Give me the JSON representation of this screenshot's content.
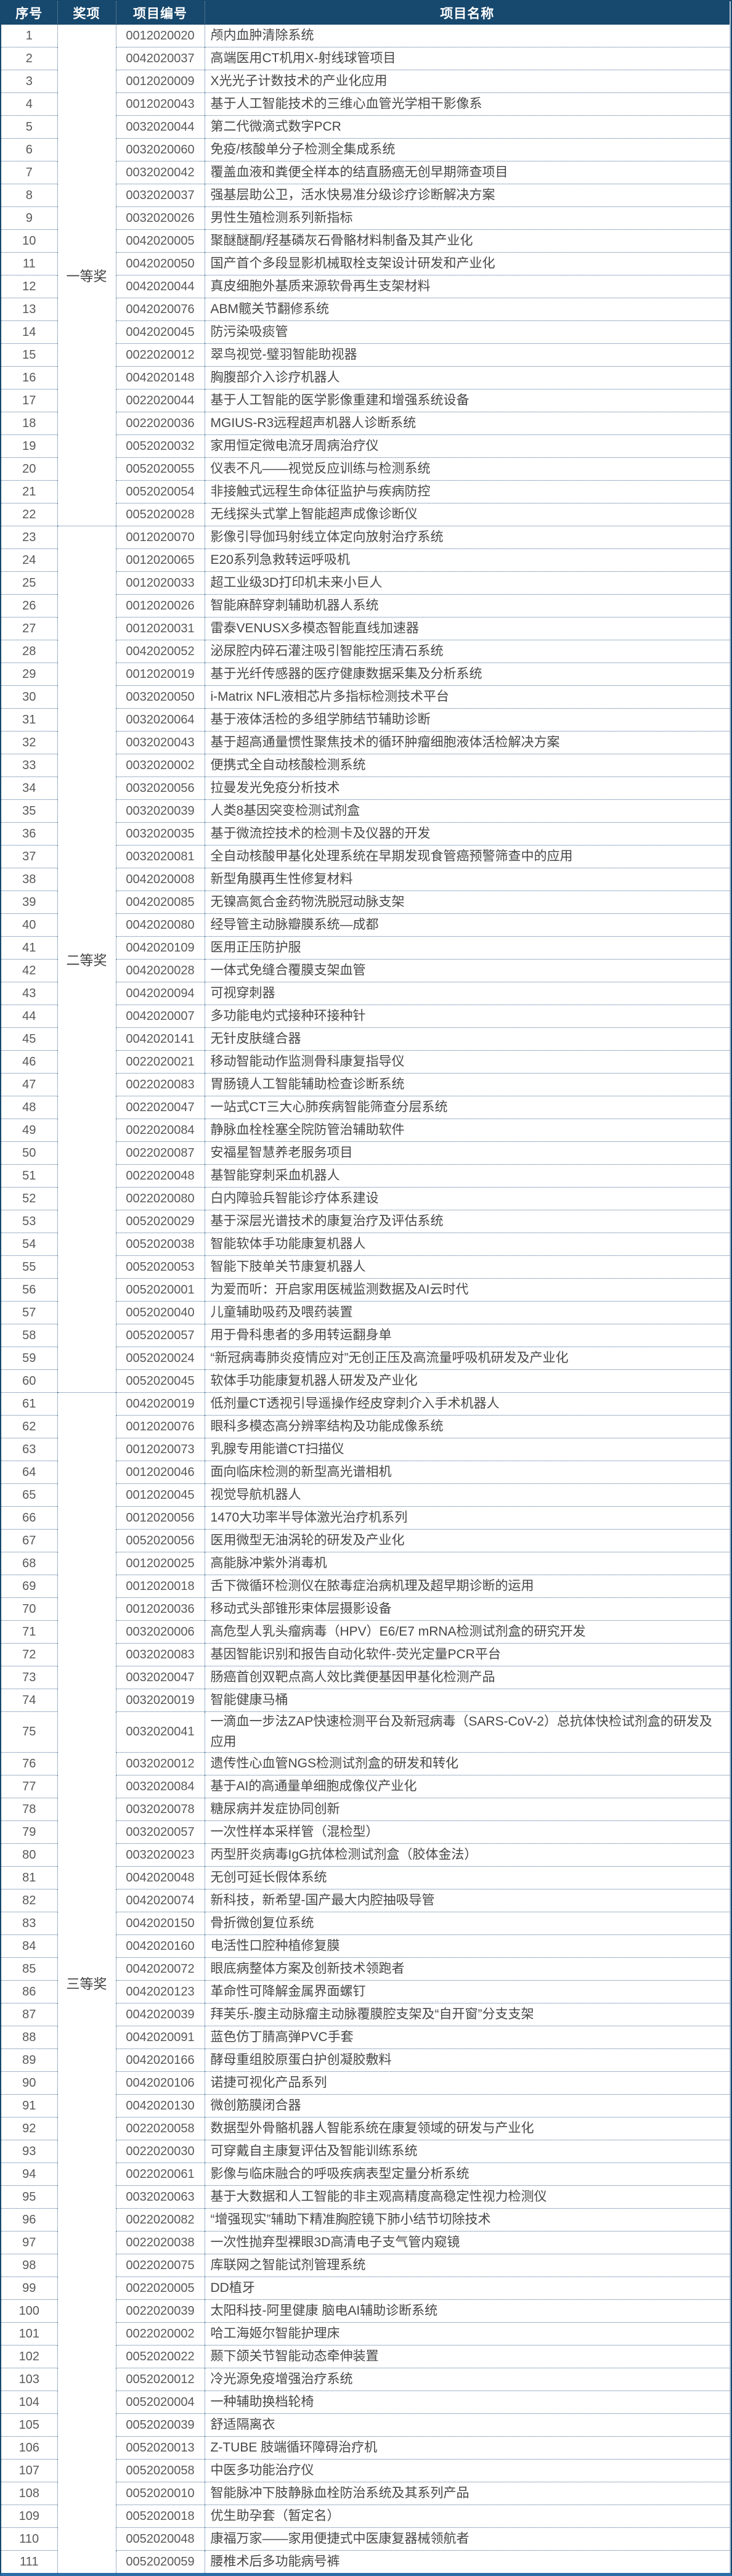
{
  "colors": {
    "header_bg": "#17486d",
    "header_text": "#ffffff",
    "outer_border": "#17486d",
    "bottom_accent": "#2b6da8",
    "grid_dotted": "#466f96",
    "body_text": "#474747"
  },
  "table": {
    "columns": [
      "序号",
      "奖项",
      "项目编号",
      "项目名称"
    ],
    "groups": [
      {
        "award": "一等奖",
        "rows": [
          {
            "no": "1",
            "code": "0012020020",
            "name": "颅内血肿清除系统"
          },
          {
            "no": "2",
            "code": "0042020037",
            "name": "高端医用CT机用X-射线球管项目"
          },
          {
            "no": "3",
            "code": "0012020009",
            "name": "X光光子计数技术的产业化应用"
          },
          {
            "no": "4",
            "code": "0012020043",
            "name": "基于人工智能技术的三维心血管光学相干影像系"
          },
          {
            "no": "5",
            "code": "0032020044",
            "name": "第二代微滴式数字PCR"
          },
          {
            "no": "6",
            "code": "0032020060",
            "name": "免疫/核酸单分子检测全集成系统"
          },
          {
            "no": "7",
            "code": "0032020042",
            "name": "覆盖血液和粪便全样本的结直肠癌无创早期筛查项目"
          },
          {
            "no": "8",
            "code": "0032020037",
            "name": "强基层助公卫，活水快易准分级诊疗诊断解决方案"
          },
          {
            "no": "9",
            "code": "0032020026",
            "name": "男性生殖检测系列新指标"
          },
          {
            "no": "10",
            "code": "0042020005",
            "name": "聚醚醚酮/羟基磷灰石骨骼材料制备及其产业化"
          },
          {
            "no": "11",
            "code": "0042020050",
            "name": "国产首个多段显影机械取栓支架设计研发和产业化"
          },
          {
            "no": "12",
            "code": "0042020044",
            "name": "真皮细胞外基质来源软骨再生支架材料"
          },
          {
            "no": "13",
            "code": "0042020076",
            "name": "ABM髋关节翻修系统"
          },
          {
            "no": "14",
            "code": "0042020045",
            "name": "防污染吸痰管"
          },
          {
            "no": "15",
            "code": "0022020012",
            "name": "翠鸟视觉-璧羽智能助视器"
          },
          {
            "no": "16",
            "code": "0042020148",
            "name": "胸腹部介入诊疗机器人"
          },
          {
            "no": "17",
            "code": "0022020044",
            "name": "基于人工智能的医学影像重建和增强系统设备"
          },
          {
            "no": "18",
            "code": "0022020036",
            "name": "MGIUS-R3远程超声机器人诊断系统"
          },
          {
            "no": "19",
            "code": "0052020032",
            "name": "家用恒定微电流牙周病治疗仪"
          },
          {
            "no": "20",
            "code": "0052020055",
            "name": "仪表不凡——视觉反应训练与检测系统"
          },
          {
            "no": "21",
            "code": "0052020054",
            "name": "非接触式远程生命体征监护与疾病防控"
          },
          {
            "no": "22",
            "code": "0052020028",
            "name": "无线探头式掌上智能超声成像诊断仪"
          }
        ]
      },
      {
        "award": "二等奖",
        "rows": [
          {
            "no": "23",
            "code": "0012020070",
            "name": "影像引导伽玛射线立体定向放射治疗系统"
          },
          {
            "no": "24",
            "code": "0012020065",
            "name": "E20系列急救转运呼吸机"
          },
          {
            "no": "25",
            "code": "0012020033",
            "name": "超工业级3D打印机未来小巨人"
          },
          {
            "no": "26",
            "code": "0012020026",
            "name": "智能麻醉穿刺辅助机器人系统"
          },
          {
            "no": "27",
            "code": "0012020031",
            "name": "雷泰VENUSX多模态智能直线加速器"
          },
          {
            "no": "28",
            "code": "0042020052",
            "name": "泌尿腔内碎石灌注吸引智能控压清石系统"
          },
          {
            "no": "29",
            "code": "0012020019",
            "name": "基于光纤传感器的医疗健康数据采集及分析系统"
          },
          {
            "no": "30",
            "code": "0032020050",
            "name": "i-Matrix NFL液相芯片多指标检测技术平台"
          },
          {
            "no": "31",
            "code": "0032020064",
            "name": "基于液体活检的多组学肺结节辅助诊断"
          },
          {
            "no": "32",
            "code": "0032020043",
            "name": "基于超高通量惯性聚焦技术的循环肿瘤细胞液体活检解决方案"
          },
          {
            "no": "33",
            "code": "0032020002",
            "name": "便携式全自动核酸检测系统"
          },
          {
            "no": "34",
            "code": "0032020056",
            "name": "拉曼发光免疫分析技术"
          },
          {
            "no": "35",
            "code": "0032020039",
            "name": "人类8基因突变检测试剂盒"
          },
          {
            "no": "36",
            "code": "0032020035",
            "name": "基于微流控技术的检测卡及仪器的开发"
          },
          {
            "no": "37",
            "code": "0032020081",
            "name": "全自动核酸甲基化处理系统在早期发现食管癌预警筛查中的应用"
          },
          {
            "no": "38",
            "code": "0042020008",
            "name": "新型角膜再生性修复材料"
          },
          {
            "no": "39",
            "code": "0042020085",
            "name": "无镍高氮合金药物洗脱冠动脉支架"
          },
          {
            "no": "40",
            "code": "0042020080",
            "name": "经导管主动脉瓣膜系统—成都"
          },
          {
            "no": "41",
            "code": "0042020109",
            "name": "医用正压防护服"
          },
          {
            "no": "42",
            "code": "0042020028",
            "name": "一体式免缝合覆膜支架血管"
          },
          {
            "no": "43",
            "code": "0042020094",
            "name": "可视穿刺器"
          },
          {
            "no": "44",
            "code": "0042020007",
            "name": "多功能电灼式接种环接种针"
          },
          {
            "no": "45",
            "code": "0042020141",
            "name": "无针皮肤缝合器"
          },
          {
            "no": "46",
            "code": "0022020021",
            "name": "移动智能动作监测骨科康复指导仪"
          },
          {
            "no": "47",
            "code": "0022020083",
            "name": "胃肠镜人工智能辅助检查诊断系统"
          },
          {
            "no": "48",
            "code": "0022020047",
            "name": "一站式CT三大心肺疾病智能筛查分层系统"
          },
          {
            "no": "49",
            "code": "0022020084",
            "name": "静脉血栓栓塞全院防管治辅助软件"
          },
          {
            "no": "50",
            "code": "0022020087",
            "name": "安福星智慧养老服务项目"
          },
          {
            "no": "51",
            "code": "0022020048",
            "name": "基智能穿刺采血机器人"
          },
          {
            "no": "52",
            "code": "0022020080",
            "name": "白内障验兵智能诊疗体系建设"
          },
          {
            "no": "53",
            "code": "0052020029",
            "name": "基于深层光谱技术的康复治疗及评估系统"
          },
          {
            "no": "54",
            "code": "0052020038",
            "name": "智能软体手功能康复机器人"
          },
          {
            "no": "55",
            "code": "0052020053",
            "name": "智能下肢单关节康复机器人"
          },
          {
            "no": "56",
            "code": "0052020001",
            "name": "为爱而听：开启家用医械监测数据及AI云时代"
          },
          {
            "no": "57",
            "code": "0052020040",
            "name": "儿童辅助吸药及喂药装置"
          },
          {
            "no": "58",
            "code": "0052020057",
            "name": "用于骨科患者的多用转运翻身单"
          },
          {
            "no": "59",
            "code": "0052020024",
            "name": "“新冠病毒肺炎疫情应对”无创正压及高流量呼吸机研发及产业化"
          },
          {
            "no": "60",
            "code": "0052020045",
            "name": "软体手功能康复机器人研发及产业化"
          }
        ]
      },
      {
        "award": "三等奖",
        "rows": [
          {
            "no": "61",
            "code": "0042020019",
            "name": "低剂量CT透视引导遥操作经皮穿刺介入手术机器人"
          },
          {
            "no": "62",
            "code": "0012020076",
            "name": "眼科多模态高分辨率结构及功能成像系统"
          },
          {
            "no": "63",
            "code": "0012020073",
            "name": "乳腺专用能谱CT扫描仪"
          },
          {
            "no": "64",
            "code": "0012020046",
            "name": "面向临床检测的新型高光谱相机"
          },
          {
            "no": "65",
            "code": "0012020045",
            "name": "视觉导航机器人"
          },
          {
            "no": "66",
            "code": "0012020056",
            "name": "1470大功率半导体激光治疗机系列"
          },
          {
            "no": "67",
            "code": "0052020056",
            "name": "医用微型无油涡轮的研发及产业化"
          },
          {
            "no": "68",
            "code": "0012020025",
            "name": "高能脉冲紫外消毒机"
          },
          {
            "no": "69",
            "code": "0012020018",
            "name": "舌下微循环检测仪在脓毒症治病机理及超早期诊断的运用"
          },
          {
            "no": "70",
            "code": "0012020036",
            "name": "移动式头部锥形束体层摄影设备"
          },
          {
            "no": "71",
            "code": "0032020006",
            "name": "高危型人乳头瘤病毒（HPV）E6/E7 mRNA检测试剂盒的研究开发"
          },
          {
            "no": "72",
            "code": "0032020083",
            "name": "基因智能识别和报告自动化软件-荧光定量PCR平台"
          },
          {
            "no": "73",
            "code": "0032020047",
            "name": "肠癌首创双靶点高人效比粪便基因甲基化检测产品"
          },
          {
            "no": "74",
            "code": "0032020019",
            "name": "智能健康马桶"
          },
          {
            "no": "75",
            "code": "0032020041",
            "name": "一滴血一步法ZAP快速检测平台及新冠病毒（SARS-CoV-2）总抗体快检试剂盒的研发及应用"
          },
          {
            "no": "76",
            "code": "0032020012",
            "name": "遗传性心血管NGS检测试剂盒的研发和转化"
          },
          {
            "no": "77",
            "code": "0032020084",
            "name": "基于AI的高通量单细胞成像仪产业化"
          },
          {
            "no": "78",
            "code": "0032020078",
            "name": "糖尿病并发症协同创新"
          },
          {
            "no": "79",
            "code": "0032020057",
            "name": "一次性样本采样管（混检型）"
          },
          {
            "no": "80",
            "code": "0032020023",
            "name": "丙型肝炎病毒IgG抗体检测试剂盒（胶体金法）"
          },
          {
            "no": "81",
            "code": "0042020048",
            "name": "无创可延长假体系统"
          },
          {
            "no": "82",
            "code": "0042020074",
            "name": "新科技，新希望-国产最大内腔抽吸导管"
          },
          {
            "no": "83",
            "code": "0042020150",
            "name": "骨折微创复位系统"
          },
          {
            "no": "84",
            "code": "0042020160",
            "name": "电活性口腔种植修复膜"
          },
          {
            "no": "85",
            "code": "0042020072",
            "name": "眼底病整体方案及创新技术领跑者"
          },
          {
            "no": "86",
            "code": "0042020123",
            "name": "革命性可降解金属界面螺钉"
          },
          {
            "no": "87",
            "code": "0042020039",
            "name": "拜芙乐-腹主动脉瘤主动脉覆膜腔支架及“自开窗”分支支架"
          },
          {
            "no": "88",
            "code": "0042020091",
            "name": "蓝色仿丁腈高弹PVC手套"
          },
          {
            "no": "89",
            "code": "0042020166",
            "name": "酵母重组胶原蛋白护创凝胶敷料"
          },
          {
            "no": "90",
            "code": "0042020106",
            "name": "诺捷可视化产品系列"
          },
          {
            "no": "91",
            "code": "0042020130",
            "name": "微创筋膜闭合器"
          },
          {
            "no": "92",
            "code": "0022020058",
            "name": "数据型外骨骼机器人智能系统在康复领域的研发与产业化"
          },
          {
            "no": "93",
            "code": "0022020030",
            "name": "可穿戴自主康复评估及智能训练系统"
          },
          {
            "no": "94",
            "code": "0022020061",
            "name": "影像与临床融合的呼吸疾病表型定量分析系统"
          },
          {
            "no": "95",
            "code": "0032020063",
            "name": "基于大数据和人工智能的非主观高精度高稳定性视力检测仪"
          },
          {
            "no": "96",
            "code": "0022020082",
            "name": "“增强现实”辅助下精准胸腔镜下肺小结节切除技术"
          },
          {
            "no": "97",
            "code": "0022020038",
            "name": "一次性抛弃型裸眼3D高清电子支气管内窥镜"
          },
          {
            "no": "98",
            "code": "0022020075",
            "name": "库联网之智能试剂管理系统"
          },
          {
            "no": "99",
            "code": "0022020005",
            "name": "DD植牙"
          },
          {
            "no": "100",
            "code": "0022020039",
            "name": "太阳科技-阿里健康 脑电AI辅助诊断系统"
          },
          {
            "no": "101",
            "code": "0022020002",
            "name": "哈工海姬尔智能护理床"
          },
          {
            "no": "102",
            "code": "0052020022",
            "name": "颞下颌关节智能动态牵伸装置"
          },
          {
            "no": "103",
            "code": "0052020012",
            "name": "冷光源免疫增强治疗系统"
          },
          {
            "no": "104",
            "code": "0052020004",
            "name": "一种辅助换档轮椅"
          },
          {
            "no": "105",
            "code": "0052020039",
            "name": "舒适隔离衣"
          },
          {
            "no": "106",
            "code": "0052020013",
            "name": "Z-TUBE 肢端循环障碍治疗机"
          },
          {
            "no": "107",
            "code": "0052020058",
            "name": "中医多功能治疗仪"
          },
          {
            "no": "108",
            "code": "0052020010",
            "name": "智能脉冲下肢静脉血栓防治系统及其系列产品"
          },
          {
            "no": "109",
            "code": "0052020018",
            "name": "优生助孕套（暂定名）"
          },
          {
            "no": "110",
            "code": "0052020048",
            "name": "康福万家——家用便捷式中医康复器械领航者"
          },
          {
            "no": "111",
            "code": "0052020059",
            "name": "腰椎术后多功能病号裤"
          }
        ]
      }
    ]
  }
}
